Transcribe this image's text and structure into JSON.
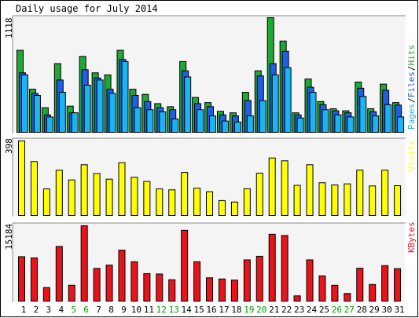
{
  "title": "Daily usage for July 2014",
  "colors": {
    "background": "#ffffff",
    "panel": "#f4f4f4",
    "hits": "#1fa834",
    "files": "#1e5fe6",
    "pages": "#1ab4f0",
    "visits": "#ffff00",
    "kbytes": "#e8141c",
    "weekday_label": "#000000",
    "weekend_label": "#00a000"
  },
  "chart_data": [
    {
      "type": "bar",
      "title": "Daily usage for July 2014",
      "max_label": "1118",
      "legend": {
        "pages": "Pages",
        "sep1": "/",
        "files": "Files",
        "sep2": "/",
        "hits": "Hits"
      },
      "categories": [
        "1",
        "2",
        "3",
        "4",
        "5",
        "6",
        "7",
        "8",
        "9",
        "10",
        "11",
        "12",
        "13",
        "14",
        "15",
        "16",
        "17",
        "18",
        "19",
        "20",
        "21",
        "22",
        "23",
        "24",
        "25",
        "26",
        "27",
        "28",
        "29",
        "30",
        "31"
      ],
      "weekend_days": [
        "5",
        "6",
        "12",
        "13",
        "19",
        "20",
        "26",
        "27"
      ],
      "ylim": [
        0,
        1118
      ],
      "series": [
        {
          "name": "Hits",
          "values": [
            800,
            420,
            240,
            670,
            255,
            740,
            580,
            560,
            800,
            420,
            370,
            280,
            250,
            690,
            340,
            290,
            205,
            190,
            390,
            600,
            1118,
            890,
            190,
            520,
            300,
            230,
            210,
            490,
            230,
            470,
            290
          ]
        },
        {
          "name": "Files",
          "values": [
            580,
            380,
            170,
            510,
            190,
            610,
            530,
            420,
            710,
            360,
            300,
            240,
            220,
            600,
            280,
            250,
            170,
            160,
            310,
            550,
            670,
            790,
            170,
            440,
            270,
            210,
            190,
            430,
            200,
            410,
            265
          ]
        },
        {
          "name": "Pages",
          "values": [
            560,
            360,
            150,
            390,
            190,
            460,
            510,
            380,
            690,
            240,
            220,
            200,
            130,
            540,
            220,
            160,
            110,
            100,
            160,
            310,
            560,
            630,
            140,
            390,
            220,
            170,
            150,
            350,
            160,
            270,
            150
          ]
        }
      ]
    },
    {
      "type": "bar",
      "max_label": "398",
      "legend": {
        "visits": "Visits"
      },
      "categories": [
        "1",
        "2",
        "3",
        "4",
        "5",
        "6",
        "7",
        "8",
        "9",
        "10",
        "11",
        "12",
        "13",
        "14",
        "15",
        "16",
        "17",
        "18",
        "19",
        "20",
        "21",
        "22",
        "23",
        "24",
        "25",
        "26",
        "27",
        "28",
        "29",
        "30",
        "31"
      ],
      "ylim": [
        0,
        398
      ],
      "series": [
        {
          "name": "Visits",
          "values": [
            398,
            288,
            142,
            242,
            190,
            271,
            224,
            194,
            282,
            204,
            182,
            142,
            137,
            230,
            146,
            127,
            80,
            72,
            143,
            226,
            307,
            292,
            161,
            271,
            175,
            163,
            169,
            242,
            158,
            242,
            159
          ]
        }
      ]
    },
    {
      "type": "bar",
      "max_label": "15184",
      "legend": {
        "kbytes": "KBytes"
      },
      "categories": [
        "1",
        "2",
        "3",
        "4",
        "5",
        "6",
        "7",
        "8",
        "9",
        "10",
        "11",
        "12",
        "13",
        "14",
        "15",
        "16",
        "17",
        "18",
        "19",
        "20",
        "21",
        "22",
        "23",
        "24",
        "25",
        "26",
        "27",
        "28",
        "29",
        "30",
        "31"
      ],
      "ylim": [
        0,
        15184
      ],
      "series": [
        {
          "name": "KBytes",
          "values": [
            8950,
            8710,
            2730,
            11020,
            3200,
            15184,
            6590,
            7260,
            10270,
            7930,
            5540,
            5460,
            4310,
            14260,
            7930,
            4700,
            4470,
            4230,
            8310,
            9030,
            13470,
            13220,
            1060,
            8310,
            5090,
            3190,
            1540,
            6630,
            3350,
            7150,
            6540
          ]
        }
      ]
    }
  ]
}
